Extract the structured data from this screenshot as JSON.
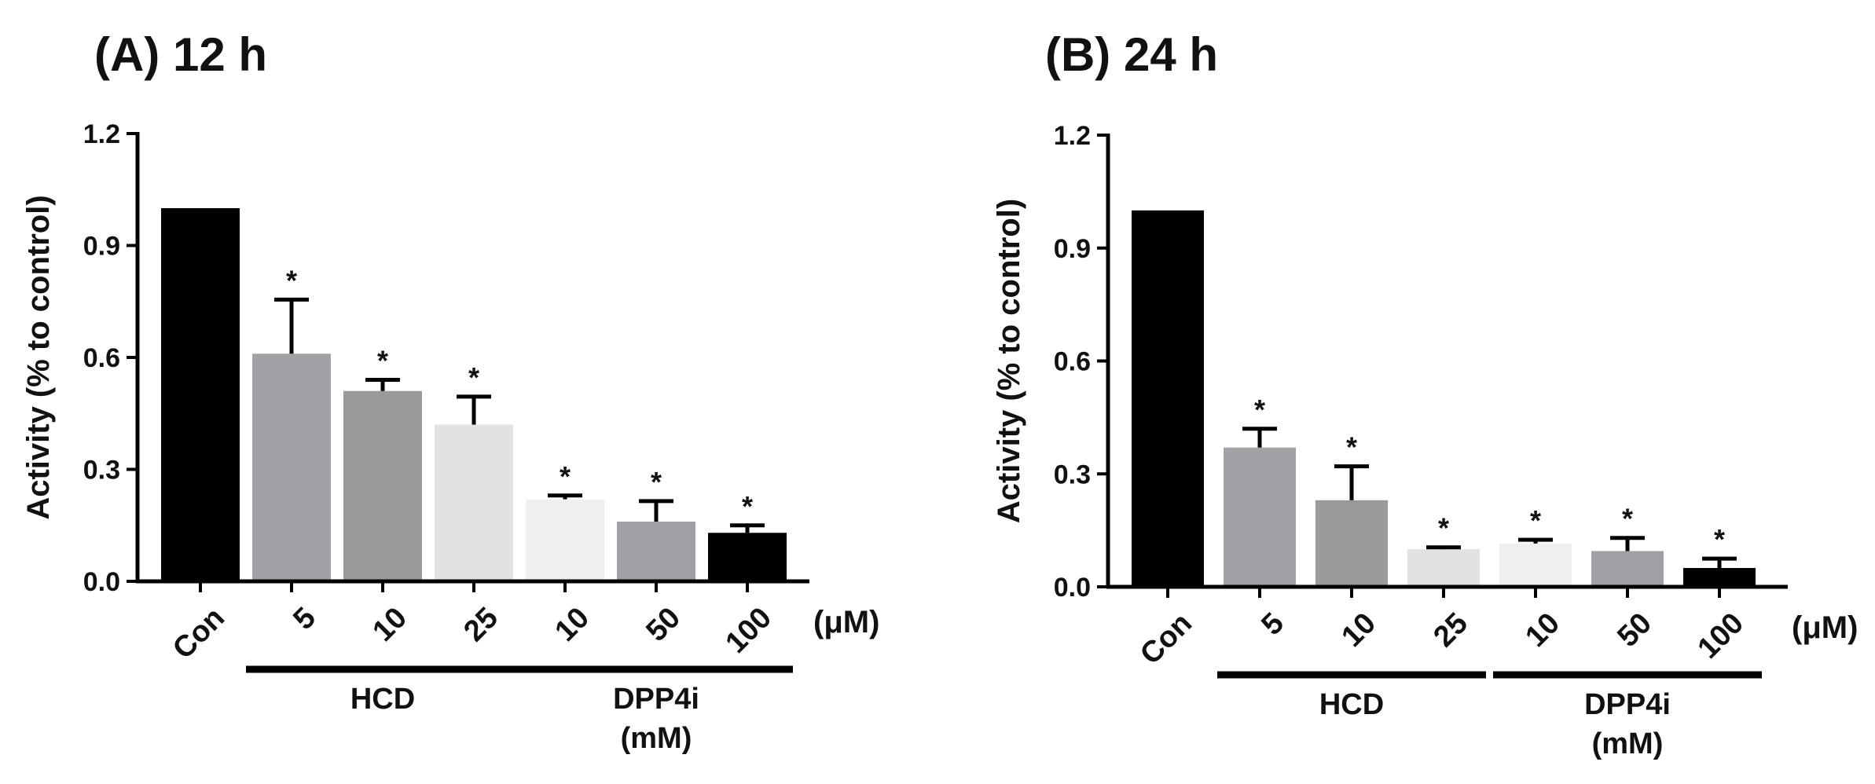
{
  "chart_data": [
    {
      "type": "bar",
      "title": "(A) 12 h",
      "ylabel": "Activity (% to control)",
      "ylim": [
        0,
        1.2
      ],
      "yticks": [
        "0.0",
        "0.3",
        "0.6",
        "0.9",
        "1.2"
      ],
      "categories": [
        "Con",
        "5",
        "10",
        "25",
        "10",
        "50",
        "100"
      ],
      "values": [
        1.0,
        0.61,
        0.51,
        0.42,
        0.22,
        0.16,
        0.13
      ],
      "errors": [
        0,
        0.145,
        0.03,
        0.075,
        0.01,
        0.055,
        0.02
      ],
      "significance": [
        "",
        "*",
        "*",
        "*",
        "*",
        "*",
        "*"
      ],
      "colors": [
        "#000000",
        "#a2a2a6",
        "#9a9a9a",
        "#e2e2e2",
        "#efefef",
        "#a0a0a4",
        "#000000"
      ],
      "unit_label": "(μM)",
      "groups": [
        {
          "label": "HCD",
          "from": 1,
          "to": 3
        },
        {
          "label": "DPP4i",
          "sublabel": "(mM)",
          "from": 4,
          "to": 6
        }
      ]
    },
    {
      "type": "bar",
      "title": "(B) 24 h",
      "ylabel": "Activity (% to control)",
      "ylim": [
        0,
        1.2
      ],
      "yticks": [
        "0.0",
        "0.3",
        "0.6",
        "0.9",
        "1.2"
      ],
      "categories": [
        "Con",
        "5",
        "10",
        "25",
        "10",
        "50",
        "100"
      ],
      "values": [
        1.0,
        0.37,
        0.23,
        0.1,
        0.115,
        0.095,
        0.05
      ],
      "errors": [
        0,
        0.05,
        0.09,
        0.005,
        0.01,
        0.035,
        0.025
      ],
      "significance": [
        "",
        "*",
        "*",
        "*",
        "*",
        "*",
        "*"
      ],
      "colors": [
        "#000000",
        "#a2a2a6",
        "#9a9a9a",
        "#e2e2e2",
        "#efefef",
        "#a0a0a4",
        "#000000"
      ],
      "unit_label": "(μM)",
      "groups": [
        {
          "label": "HCD",
          "from": 1,
          "to": 3
        },
        {
          "label": "DPP4i",
          "sublabel": "(mM)",
          "from": 4,
          "to": 6
        }
      ]
    }
  ]
}
